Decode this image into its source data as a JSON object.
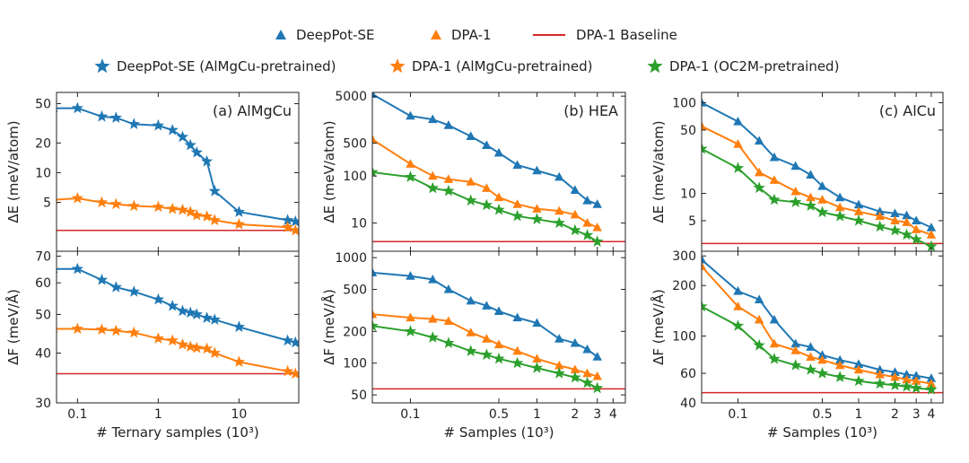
{
  "legend": {
    "row1": [
      {
        "label": "DeepPot-SE",
        "marker": "triangle",
        "color": "#1f77b4"
      },
      {
        "label": "DPA-1",
        "marker": "triangle",
        "color": "#ff7f0e"
      },
      {
        "label": "DPA-1 Baseline",
        "marker": "line",
        "color": "#d62728"
      }
    ],
    "row2": [
      {
        "label": "DeepPot-SE (AlMgCu-pretrained)",
        "marker": "star",
        "color": "#1f77b4"
      },
      {
        "label": "DPA-1 (AlMgCu-pretrained)",
        "marker": "star",
        "color": "#ff7f0e"
      },
      {
        "label": "DPA-1 (OC2M-pretrained)",
        "marker": "star",
        "color": "#2ca02c"
      }
    ]
  },
  "chart_data": [
    {
      "type": "line",
      "panel": "AlMgCu",
      "row": "energy",
      "title": "(a) AlMgCu",
      "xscale": "log",
      "yscale": "log",
      "xlim": [
        0.055,
        55
      ],
      "ylim": [
        1.6,
        65
      ],
      "ylabel": "ΔE (meV/atom)",
      "yticks": [
        5,
        10,
        20,
        50
      ],
      "yticklabels": [
        "5",
        "10",
        "20",
        "50"
      ],
      "baseline": 2.6,
      "series": [
        {
          "name": "DeepPot-SE",
          "color": "#1f77b4",
          "start": "triangle",
          "marker": "star",
          "x": [
            0.05,
            0.1,
            0.2,
            0.3,
            0.5,
            1,
            1.5,
            2,
            2.5,
            3,
            4,
            5,
            10,
            40,
            50
          ],
          "y": [
            45,
            45,
            37,
            36,
            31,
            30,
            27,
            23,
            19,
            16,
            13,
            6.5,
            4,
            3.3,
            3.2
          ]
        },
        {
          "name": "DPA-1",
          "color": "#ff7f0e",
          "start": "triangle",
          "marker": "star",
          "x": [
            0.05,
            0.1,
            0.2,
            0.3,
            0.5,
            1,
            1.5,
            2,
            2.5,
            3,
            4,
            5,
            10,
            40,
            50
          ],
          "y": [
            5.3,
            5.5,
            5.0,
            4.8,
            4.6,
            4.5,
            4.3,
            4.2,
            4.0,
            3.7,
            3.6,
            3.3,
            3.0,
            2.8,
            2.6
          ]
        }
      ]
    },
    {
      "type": "line",
      "panel": "HEA",
      "row": "energy",
      "title": "(b) HEA",
      "xscale": "log",
      "yscale": "log",
      "xlim": [
        0.05,
        5
      ],
      "ylim": [
        2.5,
        6000
      ],
      "ylabel": "ΔE (meV/atom)",
      "yticks": [
        10,
        100,
        500,
        5000
      ],
      "yticklabels": [
        "10",
        "100",
        "500",
        "5000"
      ],
      "baseline": 4.0,
      "series": [
        {
          "name": "DeepPot-SE",
          "color": "#1f77b4",
          "start": "triangle",
          "marker": "triangle",
          "x": [
            0.05,
            0.1,
            0.15,
            0.2,
            0.3,
            0.4,
            0.5,
            0.7,
            1,
            1.5,
            2,
            2.5,
            3
          ],
          "y": [
            5500,
            1900,
            1600,
            1200,
            700,
            450,
            310,
            170,
            130,
            95,
            50,
            30,
            25
          ]
        },
        {
          "name": "DPA-1",
          "color": "#ff7f0e",
          "start": "triangle",
          "marker": "triangle",
          "x": [
            0.05,
            0.1,
            0.15,
            0.2,
            0.3,
            0.4,
            0.5,
            0.7,
            1,
            1.5,
            2,
            2.5,
            3
          ],
          "y": [
            600,
            180,
            100,
            85,
            75,
            55,
            35,
            25,
            20,
            18,
            15,
            10,
            8
          ]
        },
        {
          "name": "DPA-1 (OC2M-pretrained)",
          "color": "#2ca02c",
          "start": "star",
          "marker": "star",
          "x": [
            0.05,
            0.1,
            0.15,
            0.2,
            0.3,
            0.4,
            0.5,
            0.7,
            1,
            1.5,
            2,
            2.5,
            3
          ],
          "y": [
            120,
            95,
            55,
            48,
            30,
            24,
            19,
            14,
            12,
            10,
            7,
            5.5,
            4
          ]
        }
      ]
    },
    {
      "type": "line",
      "panel": "AlCu",
      "row": "energy",
      "title": "(c) AlCu",
      "xscale": "log",
      "yscale": "log",
      "xlim": [
        0.05,
        5
      ],
      "ylim": [
        2.3,
        130
      ],
      "ylabel": "ΔE (meV/atom)",
      "yticks": [
        5,
        10,
        50,
        100
      ],
      "yticklabels": [
        "5",
        "10",
        "50",
        "100"
      ],
      "baseline": 2.8,
      "series": [
        {
          "name": "DeepPot-SE",
          "color": "#1f77b4",
          "start": "triangle",
          "marker": "triangle",
          "x": [
            0.05,
            0.1,
            0.15,
            0.2,
            0.3,
            0.4,
            0.5,
            0.7,
            1,
            1.5,
            2,
            2.5,
            3,
            4
          ],
          "y": [
            100,
            62,
            38,
            25,
            20,
            16,
            12,
            9,
            7.5,
            6.3,
            6,
            5.7,
            5,
            4.2
          ]
        },
        {
          "name": "DPA-1",
          "color": "#ff7f0e",
          "start": "triangle",
          "marker": "triangle",
          "x": [
            0.05,
            0.1,
            0.15,
            0.2,
            0.3,
            0.4,
            0.5,
            0.7,
            1,
            1.5,
            2,
            2.5,
            3,
            4
          ],
          "y": [
            55,
            35,
            17,
            14,
            10.5,
            9,
            8.5,
            7,
            6.3,
            5.6,
            5,
            4.8,
            4,
            3.5
          ]
        },
        {
          "name": "DPA-1 (OC2M-pretrained)",
          "color": "#2ca02c",
          "start": "star",
          "marker": "star",
          "x": [
            0.05,
            0.1,
            0.15,
            0.2,
            0.3,
            0.4,
            0.5,
            0.7,
            1,
            1.5,
            2,
            2.5,
            3,
            4
          ],
          "y": [
            31,
            19,
            11.5,
            8.5,
            8,
            7.3,
            6.2,
            5.6,
            5,
            4.3,
            3.9,
            3.5,
            3.1,
            2.6
          ]
        }
      ]
    },
    {
      "type": "line",
      "panel": "AlMgCu",
      "row": "force",
      "title": "",
      "xscale": "log",
      "yscale": "log",
      "xlim": [
        0.055,
        55
      ],
      "ylim": [
        30,
        72
      ],
      "xlabel": "# Ternary samples (10³)",
      "ylabel": "ΔF (meV/Å)",
      "xticks": [
        0.1,
        1,
        10
      ],
      "xticklabels": [
        "0.1",
        "1",
        "10"
      ],
      "yticks": [
        30,
        40,
        50,
        60,
        70
      ],
      "yticklabels": [
        "30",
        "40",
        "50",
        "60",
        "70"
      ],
      "baseline": 35.5,
      "series": [
        {
          "name": "DeepPot-SE",
          "color": "#1f77b4",
          "start": "triangle",
          "marker": "star",
          "x": [
            0.05,
            0.1,
            0.2,
            0.3,
            0.5,
            1,
            1.5,
            2,
            2.5,
            3,
            4,
            5,
            10,
            40,
            50
          ],
          "y": [
            65,
            65,
            61,
            58.5,
            57,
            54.5,
            52.5,
            51,
            50.5,
            50,
            49,
            48.5,
            46.5,
            43,
            42.5
          ]
        },
        {
          "name": "DPA-1",
          "color": "#ff7f0e",
          "start": "triangle",
          "marker": "star",
          "x": [
            0.05,
            0.1,
            0.2,
            0.3,
            0.5,
            1,
            1.5,
            2,
            2.5,
            3,
            4,
            5,
            10,
            40,
            50
          ],
          "y": [
            46,
            46,
            45.8,
            45.5,
            45,
            43.5,
            43,
            42,
            41.5,
            41.2,
            41,
            40,
            38,
            36,
            35.5
          ]
        }
      ]
    },
    {
      "type": "line",
      "panel": "HEA",
      "row": "force",
      "title": "",
      "xscale": "log",
      "yscale": "log",
      "xlim": [
        0.05,
        5
      ],
      "ylim": [
        42,
        1150
      ],
      "xlabel": "# Samples (10³)",
      "ylabel": "ΔF (meV/Å)",
      "xticks": [
        0.1,
        0.5,
        1,
        2,
        3,
        4
      ],
      "xticklabels": [
        "0.1",
        "0.5",
        "1",
        "2",
        "3",
        "4"
      ],
      "yticks": [
        50,
        100,
        200,
        500,
        1000
      ],
      "yticklabels": [
        "50",
        "100",
        "200",
        "500",
        "1000"
      ],
      "baseline": 57,
      "series": [
        {
          "name": "DeepPot-SE",
          "color": "#1f77b4",
          "start": "triangle",
          "marker": "triangle",
          "x": [
            0.05,
            0.1,
            0.15,
            0.2,
            0.3,
            0.4,
            0.5,
            0.7,
            1,
            1.5,
            2,
            2.5,
            3
          ],
          "y": [
            720,
            670,
            620,
            500,
            390,
            350,
            310,
            270,
            240,
            170,
            155,
            135,
            115
          ]
        },
        {
          "name": "DPA-1",
          "color": "#ff7f0e",
          "start": "triangle",
          "marker": "triangle",
          "x": [
            0.05,
            0.1,
            0.15,
            0.2,
            0.3,
            0.4,
            0.5,
            0.7,
            1,
            1.5,
            2,
            2.5,
            3
          ],
          "y": [
            290,
            270,
            262,
            250,
            195,
            170,
            150,
            130,
            110,
            95,
            87,
            80,
            75
          ]
        },
        {
          "name": "DPA-1 (OC2M-pretrained)",
          "color": "#2ca02c",
          "start": "star",
          "marker": "star",
          "x": [
            0.05,
            0.1,
            0.15,
            0.2,
            0.3,
            0.4,
            0.5,
            0.7,
            1,
            1.5,
            2,
            2.5,
            3
          ],
          "y": [
            225,
            200,
            175,
            155,
            130,
            120,
            110,
            100,
            90,
            80,
            73,
            65,
            58
          ]
        }
      ]
    },
    {
      "type": "line",
      "panel": "AlCu",
      "row": "force",
      "title": "",
      "xscale": "log",
      "yscale": "log",
      "xlim": [
        0.05,
        5
      ],
      "ylim": [
        40,
        320
      ],
      "xlabel": "# Samples (10³)",
      "ylabel": "ΔF (meV/Å)",
      "xticks": [
        0.1,
        0.5,
        1,
        2,
        3,
        4
      ],
      "xticklabels": [
        "0.1",
        "0.5",
        "1",
        "2",
        "3",
        "4"
      ],
      "yticks": [
        40,
        60,
        100,
        200,
        300
      ],
      "yticklabels": [
        "40",
        "60",
        "100",
        "200",
        "300"
      ],
      "baseline": 46,
      "series": [
        {
          "name": "DeepPot-SE",
          "color": "#1f77b4",
          "start": "triangle",
          "marker": "triangle",
          "x": [
            0.05,
            0.1,
            0.15,
            0.2,
            0.3,
            0.4,
            0.5,
            0.7,
            1,
            1.5,
            2,
            2.5,
            3,
            4
          ],
          "y": [
            285,
            185,
            165,
            125,
            90,
            86,
            77,
            72,
            68,
            63,
            61,
            59,
            58,
            56
          ]
        },
        {
          "name": "DPA-1",
          "color": "#ff7f0e",
          "start": "triangle",
          "marker": "triangle",
          "x": [
            0.05,
            0.1,
            0.15,
            0.2,
            0.3,
            0.4,
            0.5,
            0.7,
            1,
            1.5,
            2,
            2.5,
            3,
            4
          ],
          "y": [
            260,
            150,
            125,
            90,
            82,
            75,
            72,
            67,
            63,
            59,
            57,
            55,
            54,
            52
          ]
        },
        {
          "name": "DPA-1 (OC2M-pretrained)",
          "color": "#2ca02c",
          "start": "star",
          "marker": "star",
          "x": [
            0.05,
            0.1,
            0.15,
            0.2,
            0.3,
            0.4,
            0.5,
            0.7,
            1,
            1.5,
            2,
            2.5,
            3,
            4
          ],
          "y": [
            150,
            115,
            88,
            73,
            67,
            63,
            60,
            57,
            54,
            52,
            51,
            50,
            49,
            48
          ]
        }
      ]
    }
  ]
}
